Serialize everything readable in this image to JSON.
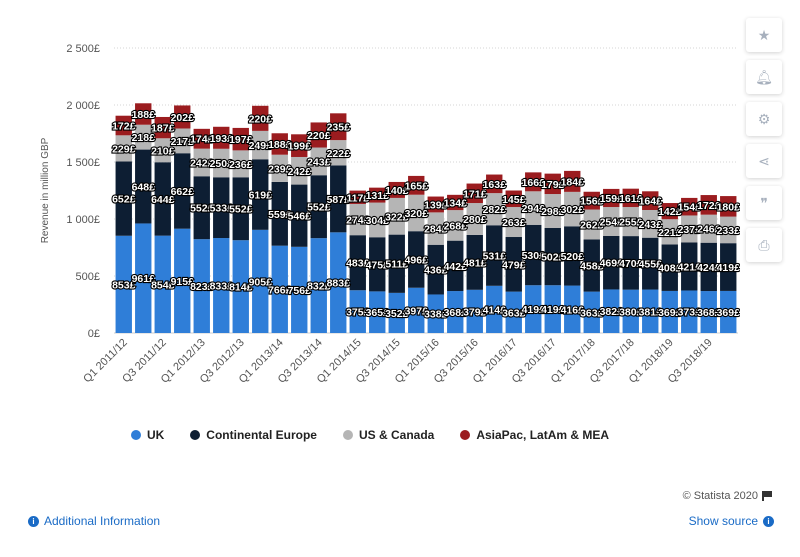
{
  "chart_data": {
    "type": "bar",
    "stacked": true,
    "ylabel": "Revenue in million GBP",
    "ylim": [
      0,
      2500
    ],
    "yticks": [
      0,
      500,
      1000,
      1500,
      2000,
      2500
    ],
    "ytick_labels": [
      "0£",
      "500£",
      "1 000£",
      "1 500£",
      "2 000£",
      "2 500£"
    ],
    "grid": true,
    "legend_position": "bottom",
    "categories": [
      "Q1 2011/12",
      "Q2 2011/12",
      "Q3 2011/12",
      "Q4 2011/12",
      "Q1 2012/13",
      "Q2 2012/13",
      "Q3 2012/13",
      "Q4 2012/13",
      "Q1 2013/14",
      "Q2 2013/14",
      "Q3 2013/14",
      "Q4 2013/14",
      "Q1 2014/15",
      "Q2 2014/15",
      "Q3 2014/15",
      "Q4 2014/15",
      "Q1 2015/16",
      "Q2 2015/16",
      "Q3 2015/16",
      "Q4 2015/16",
      "Q1 2016/17",
      "Q2 2016/17",
      "Q3 2016/17",
      "Q4 2016/17",
      "Q1 2017/18",
      "Q2 2017/18",
      "Q3 2017/18",
      "Q4 2017/18",
      "Q1 2018/19",
      "Q2 2018/19",
      "Q3 2018/19",
      "Q4 2018/19"
    ],
    "xtick_labels": [
      "Q1 2011/12",
      "Q3 2011/12",
      "Q1 2012/13",
      "Q3 2012/13",
      "Q1 2013/14",
      "Q3 2013/14",
      "Q1 2014/15",
      "Q3 2014/15",
      "Q1 2015/16",
      "Q3 2015/16",
      "Q1 2016/17",
      "Q3 2016/17",
      "Q1 2017/18",
      "Q3 2017/18",
      "Q1 2018/19",
      "Q3 2018/19"
    ],
    "series": [
      {
        "name": "UK",
        "color": "#2f7ed8",
        "values": [
          853,
          961,
          854,
          915,
          823,
          833,
          814,
          905,
          766,
          756,
          832,
          883,
          375,
          365,
          352,
          397,
          338,
          368,
          379,
          414,
          363,
          419,
          419,
          416,
          363,
          382,
          380,
          381,
          369,
          373,
          368,
          369
        ]
      },
      {
        "name": "Continental Europe",
        "color": "#0d1e33",
        "values": [
          652,
          648,
          644,
          662,
          552,
          533,
          552,
          619,
          559,
          546,
          552,
          587,
          483,
          475,
          511,
          496,
          436,
          442,
          481,
          531,
          479,
          530,
          502,
          520,
          458,
          469,
          470,
          455,
          408,
          421,
          424,
          419
        ]
      },
      {
        "name": "US & Canada",
        "color": "#b5b5b5",
        "values": [
          229,
          218,
          210,
          217,
          242,
          250,
          236,
          249,
          239,
          242,
          243,
          222,
          274,
          304,
          322,
          320,
          284,
          268,
          280,
          282,
          263,
          294,
          298,
          302,
          262,
          254,
          255,
          243,
          221,
          237,
          246,
          233
        ]
      },
      {
        "name": "AsiaPac, LatAm & MEA",
        "color": "#9b1c1f",
        "values": [
          172,
          188,
          187,
          202,
          174,
          193,
          197,
          220,
          188,
          199,
          220,
          235,
          117,
          131,
          140,
          165,
          139,
          134,
          171,
          163,
          145,
          166,
          179,
          184,
          156,
          159,
          161,
          164,
          142,
          154,
          172,
          180
        ]
      }
    ]
  },
  "legend": {
    "items": [
      {
        "label": "UK",
        "color": "#2f7ed8"
      },
      {
        "label": "Continental Europe",
        "color": "#0d1e33"
      },
      {
        "label": "US & Canada",
        "color": "#b5b5b5"
      },
      {
        "label": "AsiaPac, LatAm & MEA",
        "color": "#9b1c1f"
      }
    ]
  },
  "footer": {
    "credit": "© Statista 2020",
    "additional_info": "Additional Information",
    "show_source": "Show source"
  },
  "sidebar": {
    "icons": [
      "star-icon",
      "bell-icon",
      "gear-icon",
      "share-icon",
      "quote-icon",
      "print-icon"
    ]
  }
}
